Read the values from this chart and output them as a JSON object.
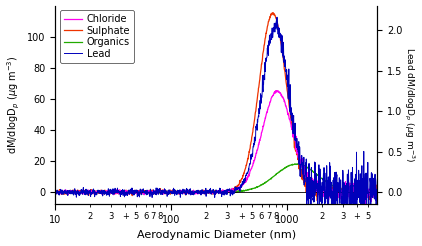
{
  "xlabel": "Aerodynamic Diameter (nm)",
  "ylabel_left": "dM/dlogD$_p$ (μg m$^{-3}$)",
  "ylabel_right": "Lead dM/dlogD$_p$ (μg m$^{-3}$)",
  "xmin": 10,
  "xmax": 6000,
  "ylim_left": [
    -8,
    120
  ],
  "ylim_right": [
    -0.15,
    2.3
  ],
  "yticks_left": [
    0,
    20,
    40,
    60,
    80,
    100
  ],
  "yticks_right": [
    0.0,
    0.5,
    1.0,
    1.5,
    2.0
  ],
  "legend": [
    "Chloride",
    "Sulphate",
    "Organics",
    "Lead"
  ],
  "colors": {
    "Chloride": "#FF00EE",
    "Sulphate": "#EE3300",
    "Organics": "#22AA00",
    "Lead": "#0000BB"
  }
}
